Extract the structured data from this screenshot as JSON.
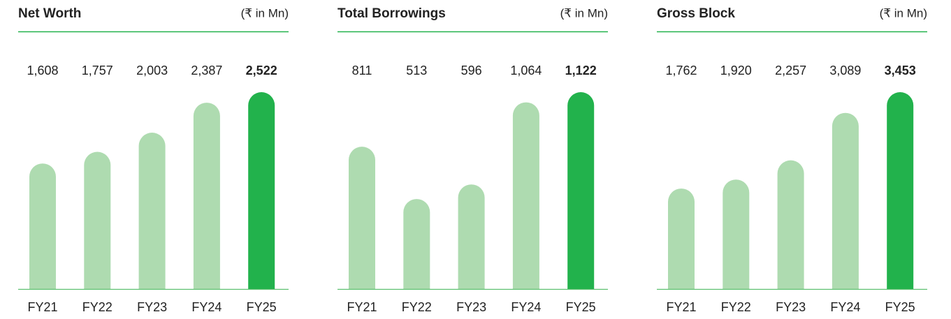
{
  "chart_data": [
    {
      "type": "bar",
      "title": "Net Worth",
      "subtitle": "(₹ in Mn)",
      "categories": [
        "FY21",
        "FY22",
        "FY23",
        "FY24",
        "FY25"
      ],
      "values": [
        1608,
        1757,
        2003,
        2387,
        2522
      ],
      "value_labels": [
        "1,608",
        "1,757",
        "2,003",
        "2,387",
        "2,522"
      ],
      "colors": [
        "#aedbb0",
        "#aedbb0",
        "#aedbb0",
        "#aedbb0",
        "#22b24c"
      ]
    },
    {
      "type": "bar",
      "title": "Total Borrowings",
      "subtitle": "(₹ in Mn)",
      "categories": [
        "FY21",
        "FY22",
        "FY23",
        "FY24",
        "FY25"
      ],
      "values": [
        811,
        513,
        596,
        1064,
        1122
      ],
      "value_labels": [
        "811",
        "513",
        "596",
        "1,064",
        "1,122"
      ],
      "colors": [
        "#aedbb0",
        "#aedbb0",
        "#aedbb0",
        "#aedbb0",
        "#22b24c"
      ]
    },
    {
      "type": "bar",
      "title": "Gross Block",
      "subtitle": "(₹ in Mn)",
      "categories": [
        "FY21",
        "FY22",
        "FY23",
        "FY24",
        "FY25"
      ],
      "values": [
        1762,
        1920,
        2257,
        3089,
        3453
      ],
      "value_labels": [
        "1,762",
        "1,920",
        "2,257",
        "3,089",
        "3,453"
      ],
      "colors": [
        "#aedbb0",
        "#aedbb0",
        "#aedbb0",
        "#aedbb0",
        "#22b24c"
      ]
    }
  ]
}
